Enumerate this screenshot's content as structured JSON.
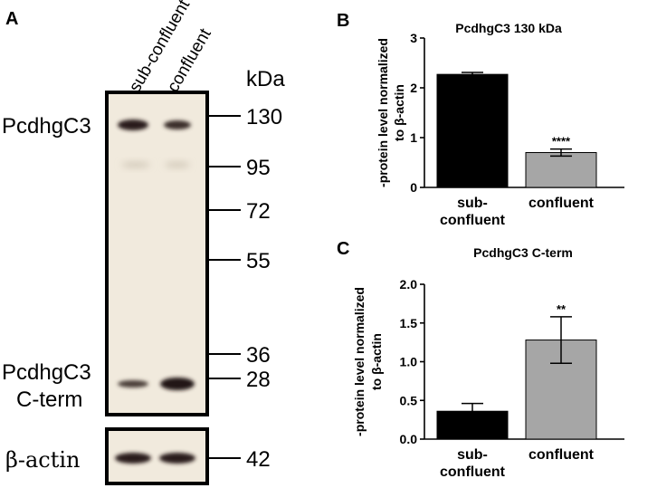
{
  "panel_a": {
    "letter": "A",
    "lane_labels": [
      "sub-confluent",
      "confluent"
    ],
    "kda_label": "kDa",
    "markers": [
      "130",
      "95",
      "72",
      "55",
      "36",
      "28"
    ],
    "band_labels": {
      "top": "PcdhgC3",
      "cterm_line1": "PcdhgC3",
      "cterm_line2": "C-term"
    },
    "actin_label": "β-actin",
    "actin_marker": "42"
  },
  "panel_b": {
    "letter": "B"
  },
  "panel_c": {
    "letter": "C"
  },
  "chart_data": [
    {
      "type": "bar",
      "title": "PcdhgC3 130 kDa",
      "ylabel_line1": "-protein level normalized",
      "ylabel_line2": "to β-actin",
      "categories_line1": [
        "sub-",
        "confluent"
      ],
      "categories_line2": [
        "confluent",
        ""
      ],
      "values": [
        2.27,
        0.7
      ],
      "errors": [
        0.04,
        0.07
      ],
      "colors": [
        "#000000",
        "#a6a6a6"
      ],
      "significance": [
        "",
        "****"
      ],
      "ylim": [
        0,
        3
      ],
      "yticks": [
        "0",
        "1",
        "2",
        "3"
      ]
    },
    {
      "type": "bar",
      "title": "PcdhgC3 C-term",
      "ylabel_line1": "-protein level normalized",
      "ylabel_line2": "to β-actin",
      "categories_line1": [
        "sub-",
        "confluent"
      ],
      "categories_line2": [
        "confluent",
        ""
      ],
      "values": [
        0.36,
        1.28
      ],
      "errors": [
        0.1,
        0.3
      ],
      "colors": [
        "#000000",
        "#a6a6a6"
      ],
      "significance": [
        "",
        "**"
      ],
      "ylim": [
        0,
        2
      ],
      "yticks": [
        "0.0",
        "0.5",
        "1.0",
        "1.5",
        "2.0"
      ]
    }
  ]
}
